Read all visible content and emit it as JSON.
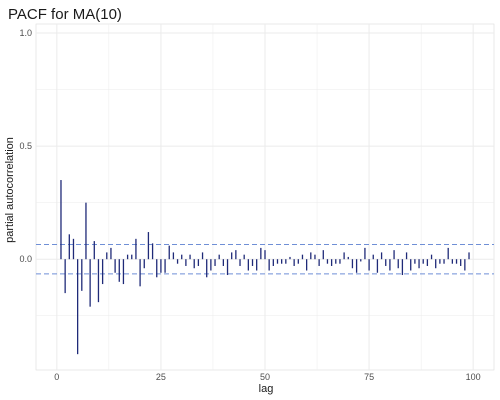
{
  "chart_data": {
    "type": "bar",
    "title": "PACF for MA(10)",
    "xlabel": "lag",
    "ylabel": "partial autocorrelation",
    "xlim": [
      -5,
      105
    ],
    "ylim": [
      -0.49,
      1.04
    ],
    "x_ticks": [
      0,
      25,
      50,
      75,
      100
    ],
    "y_ticks": [
      0.0,
      0.5,
      1.0
    ],
    "y_tick_labels": [
      "0.0",
      "0.5",
      "1.0"
    ],
    "x_tick_labels": [
      "0",
      "25",
      "50",
      "75",
      "100"
    ],
    "grid": true,
    "confidence_band": 0.065,
    "colors": {
      "bar": "#1f2a78",
      "band": "#6f8fd6",
      "grid": "#ebebeb"
    },
    "x": [
      1,
      2,
      3,
      4,
      5,
      6,
      7,
      8,
      9,
      10,
      11,
      12,
      13,
      14,
      15,
      16,
      17,
      18,
      19,
      20,
      21,
      22,
      23,
      24,
      25,
      26,
      27,
      28,
      29,
      30,
      31,
      32,
      33,
      34,
      35,
      36,
      37,
      38,
      39,
      40,
      41,
      42,
      43,
      44,
      45,
      46,
      47,
      48,
      49,
      50,
      51,
      52,
      53,
      54,
      55,
      56,
      57,
      58,
      59,
      60,
      61,
      62,
      63,
      64,
      65,
      66,
      67,
      68,
      69,
      70,
      71,
      72,
      73,
      74,
      75,
      76,
      77,
      78,
      79,
      80,
      81,
      82,
      83,
      84,
      85,
      86,
      87,
      88,
      89,
      90,
      91,
      92,
      93,
      94,
      95,
      96,
      97,
      98,
      99
    ],
    "values": [
      0.35,
      -0.15,
      0.11,
      0.09,
      -0.42,
      -0.14,
      0.25,
      -0.21,
      0.08,
      -0.19,
      -0.11,
      0.03,
      0.05,
      -0.06,
      -0.1,
      -0.11,
      0.02,
      0.02,
      0.09,
      -0.12,
      -0.04,
      0.12,
      0.07,
      -0.08,
      -0.06,
      -0.06,
      0.06,
      0.03,
      -0.02,
      0.02,
      -0.03,
      0.02,
      -0.04,
      -0.03,
      0.03,
      -0.08,
      -0.05,
      -0.03,
      0.02,
      -0.03,
      -0.07,
      0.03,
      0.04,
      -0.03,
      0.02,
      -0.05,
      -0.03,
      -0.05,
      0.05,
      0.04,
      -0.05,
      -0.03,
      -0.02,
      -0.02,
      -0.02,
      0.01,
      -0.03,
      -0.02,
      0.02,
      -0.05,
      0.03,
      0.02,
      -0.03,
      0.04,
      -0.02,
      -0.03,
      -0.02,
      -0.02,
      0.03,
      0.01,
      -0.04,
      -0.06,
      -0.01,
      0.05,
      -0.05,
      0.02,
      -0.06,
      0.03,
      -0.03,
      -0.05,
      0.04,
      -0.04,
      -0.07,
      0.03,
      -0.05,
      -0.02,
      -0.04,
      -0.02,
      -0.03,
      0.02,
      -0.04,
      -0.02,
      -0.02,
      0.05,
      -0.02,
      -0.02,
      -0.03,
      -0.05,
      0.03
    ]
  }
}
